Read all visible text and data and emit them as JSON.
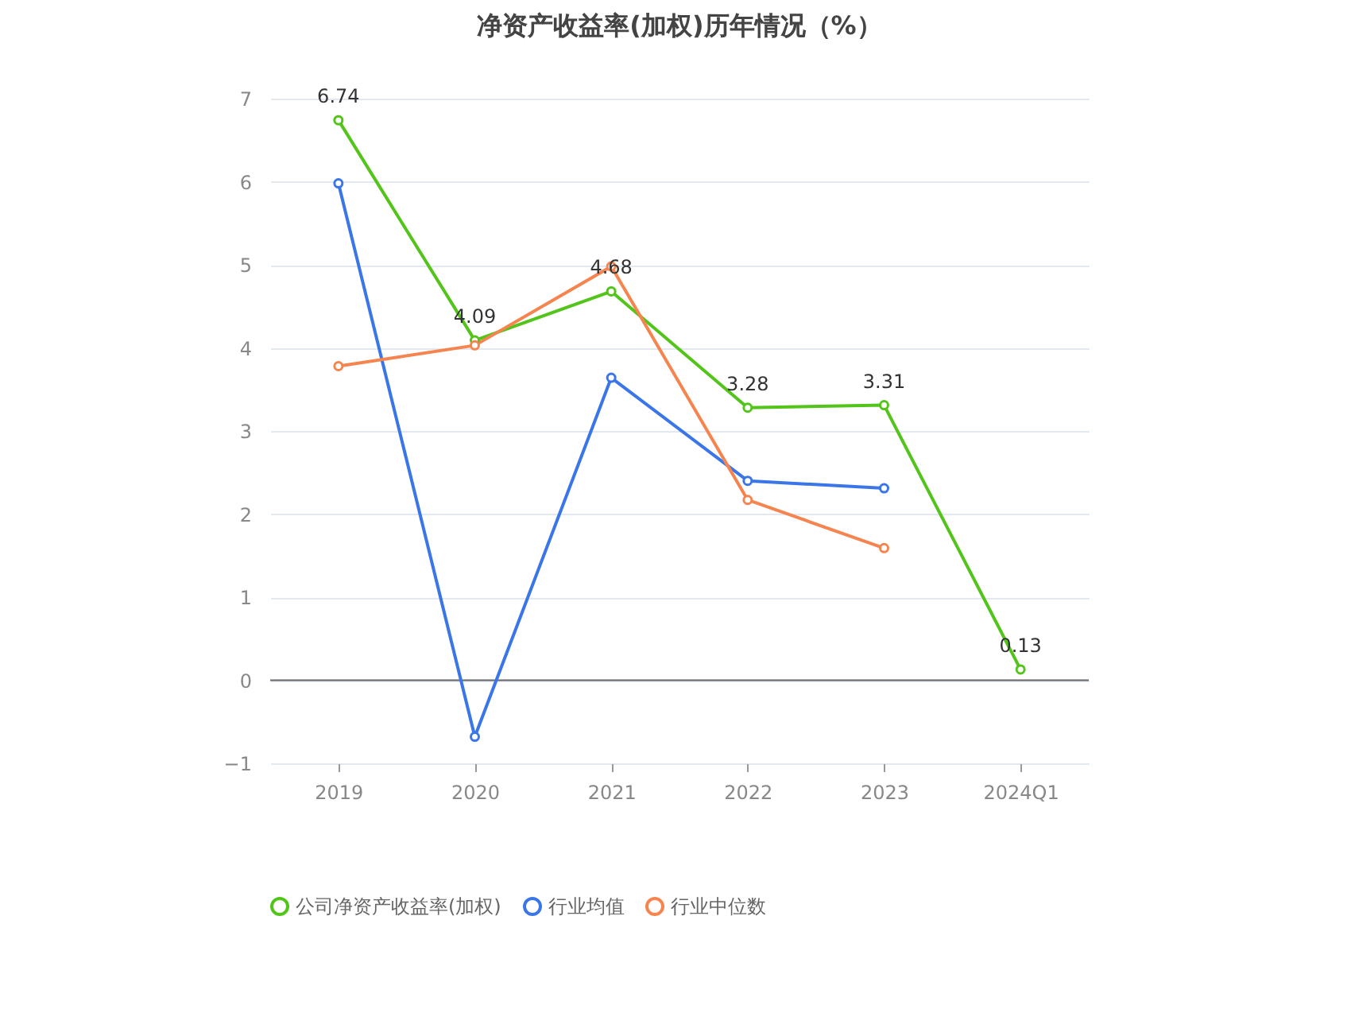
{
  "chart_data": {
    "type": "line",
    "title": "净资产收益率(加权)历年情况（%）",
    "categories": [
      "2019",
      "2020",
      "2021",
      "2022",
      "2023",
      "2024Q1"
    ],
    "series": [
      {
        "name": "公司净资产收益率(加权)",
        "color": "#52c41a",
        "values": [
          6.74,
          4.09,
          4.68,
          3.28,
          3.31,
          0.13
        ],
        "value_labels": [
          "6.74",
          "4.09",
          "4.68",
          "3.28",
          "3.31",
          "0.13"
        ]
      },
      {
        "name": "行业均值",
        "color": "#3a76e8",
        "values": [
          5.98,
          -0.68,
          3.64,
          2.4,
          2.31,
          null
        ]
      },
      {
        "name": "行业中位数",
        "color": "#f5844f",
        "values": [
          3.78,
          4.03,
          4.98,
          2.17,
          1.59,
          null
        ]
      }
    ],
    "ylim": [
      -1,
      7
    ],
    "yticks": [
      -1,
      0,
      1,
      2,
      3,
      4,
      5,
      6,
      7
    ],
    "grid": "y",
    "legend": "bottom",
    "marker": "circle",
    "line_style": "solid"
  }
}
